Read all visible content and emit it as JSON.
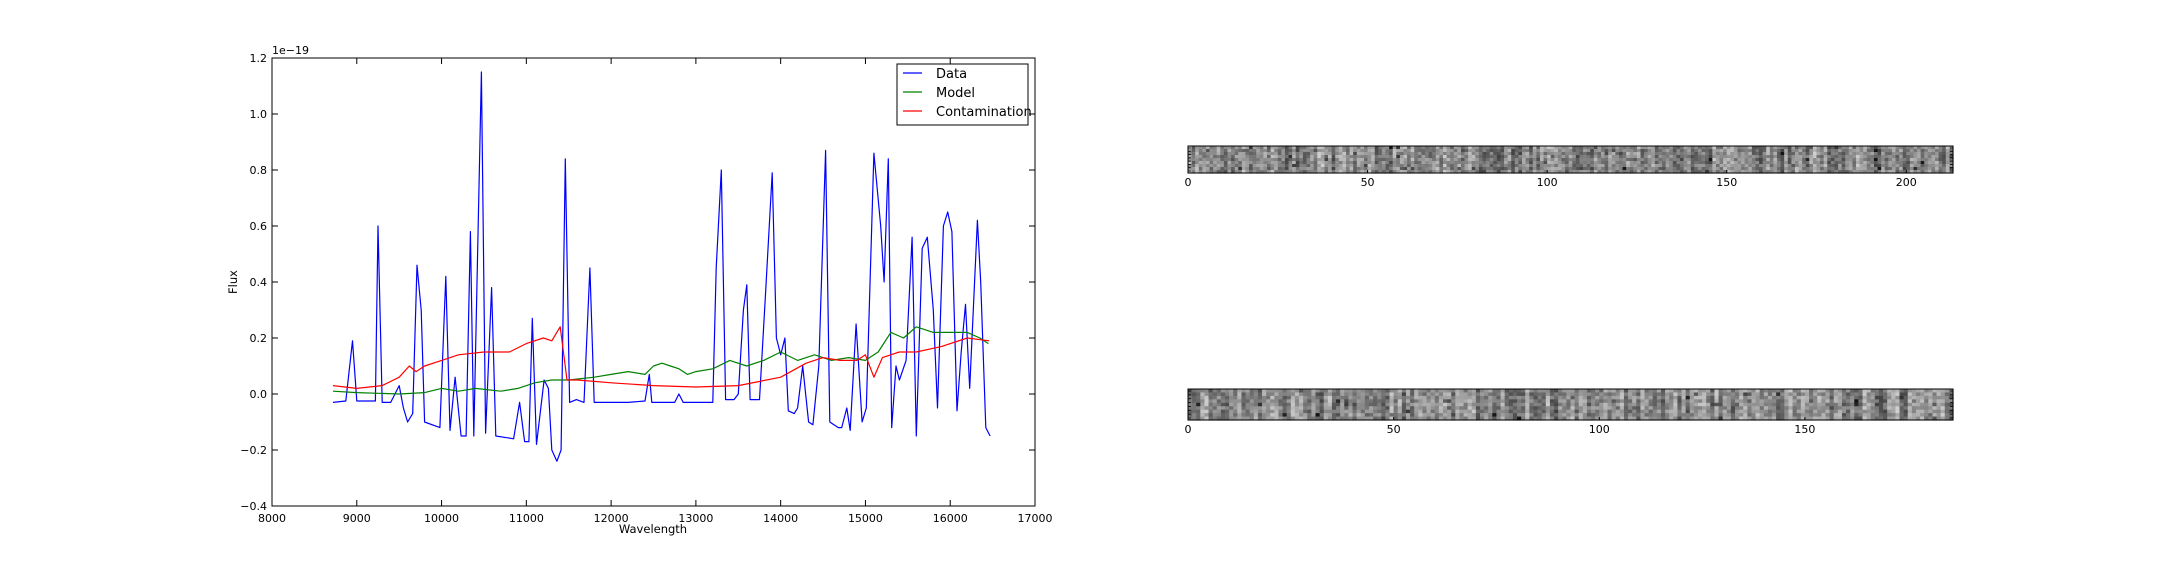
{
  "chart_data": [
    {
      "type": "line",
      "xlabel": "Wavelength",
      "ylabel": "Flux",
      "offset_label": "1e−19",
      "xlim": [
        8000,
        17000
      ],
      "ylim": [
        -0.4,
        1.2
      ],
      "xticks": [
        8000,
        9000,
        10000,
        11000,
        12000,
        13000,
        14000,
        15000,
        16000,
        17000
      ],
      "xtick_labels": [
        "8000",
        "9000",
        "10000",
        "11000",
        "12000",
        "13000",
        "14000",
        "15000",
        "16000",
        "17000"
      ],
      "yticks": [
        -0.4,
        -0.2,
        0.0,
        0.2,
        0.4,
        0.6,
        0.8,
        1.0,
        1.2
      ],
      "ytick_labels": [
        "−0.4",
        "−0.2",
        "0.0",
        "0.2",
        "0.4",
        "0.6",
        "0.8",
        "1.0",
        "1.2"
      ],
      "legend_position": "top-right",
      "grid": false,
      "series": [
        {
          "name": "Data",
          "color": "#0000ff",
          "points": [
            [
              8720,
              -0.03
            ],
            [
              8870,
              -0.025
            ],
            [
              8950,
              0.19
            ],
            [
              9000,
              -0.025
            ],
            [
              9220,
              -0.025
            ],
            [
              9250,
              0.6
            ],
            [
              9300,
              -0.03
            ],
            [
              9400,
              -0.03
            ],
            [
              9500,
              0.03
            ],
            [
              9550,
              -0.05
            ],
            [
              9600,
              -0.1
            ],
            [
              9660,
              -0.07
            ],
            [
              9710,
              0.46
            ],
            [
              9760,
              0.3
            ],
            [
              9800,
              -0.1
            ],
            [
              9980,
              -0.12
            ],
            [
              10050,
              0.42
            ],
            [
              10100,
              -0.13
            ],
            [
              10160,
              0.06
            ],
            [
              10230,
              -0.15
            ],
            [
              10290,
              -0.15
            ],
            [
              10340,
              0.58
            ],
            [
              10380,
              -0.15
            ],
            [
              10470,
              1.15
            ],
            [
              10520,
              -0.14
            ],
            [
              10590,
              0.38
            ],
            [
              10640,
              -0.15
            ],
            [
              10850,
              -0.16
            ],
            [
              10920,
              -0.03
            ],
            [
              10980,
              -0.17
            ],
            [
              11030,
              -0.17
            ],
            [
              11070,
              0.27
            ],
            [
              11120,
              -0.18
            ],
            [
              11210,
              0.05
            ],
            [
              11260,
              0.02
            ],
            [
              11300,
              -0.2
            ],
            [
              11360,
              -0.24
            ],
            [
              11410,
              -0.2
            ],
            [
              11460,
              0.84
            ],
            [
              11510,
              -0.03
            ],
            [
              11590,
              -0.02
            ],
            [
              11680,
              -0.03
            ],
            [
              11750,
              0.45
            ],
            [
              11800,
              -0.03
            ],
            [
              12000,
              -0.03
            ],
            [
              12200,
              -0.03
            ],
            [
              12400,
              -0.025
            ],
            [
              12450,
              0.07
            ],
            [
              12480,
              -0.03
            ],
            [
              12750,
              -0.03
            ],
            [
              12800,
              0.0
            ],
            [
              12850,
              -0.03
            ],
            [
              13000,
              -0.03
            ],
            [
              13200,
              -0.03
            ],
            [
              13240,
              0.45
            ],
            [
              13300,
              0.8
            ],
            [
              13350,
              -0.02
            ],
            [
              13450,
              -0.02
            ],
            [
              13500,
              0.0
            ],
            [
              13560,
              0.3
            ],
            [
              13600,
              0.39
            ],
            [
              13640,
              -0.02
            ],
            [
              13750,
              -0.02
            ],
            [
              13820,
              0.35
            ],
            [
              13900,
              0.79
            ],
            [
              13950,
              0.2
            ],
            [
              14000,
              0.14
            ],
            [
              14050,
              0.2
            ],
            [
              14090,
              -0.06
            ],
            [
              14160,
              -0.07
            ],
            [
              14200,
              -0.05
            ],
            [
              14260,
              0.1
            ],
            [
              14330,
              -0.1
            ],
            [
              14380,
              -0.11
            ],
            [
              14450,
              0.1
            ],
            [
              14530,
              0.87
            ],
            [
              14580,
              -0.1
            ],
            [
              14680,
              -0.12
            ],
            [
              14720,
              -0.12
            ],
            [
              14780,
              -0.05
            ],
            [
              14820,
              -0.13
            ],
            [
              14890,
              0.25
            ],
            [
              14960,
              -0.1
            ],
            [
              15010,
              -0.05
            ],
            [
              15100,
              0.86
            ],
            [
              15180,
              0.6
            ],
            [
              15220,
              0.4
            ],
            [
              15270,
              0.84
            ],
            [
              15310,
              -0.12
            ],
            [
              15360,
              0.1
            ],
            [
              15400,
              0.05
            ],
            [
              15480,
              0.12
            ],
            [
              15550,
              0.56
            ],
            [
              15600,
              -0.15
            ],
            [
              15670,
              0.52
            ],
            [
              15730,
              0.56
            ],
            [
              15800,
              0.3
            ],
            [
              15850,
              -0.05
            ],
            [
              15920,
              0.6
            ],
            [
              15970,
              0.65
            ],
            [
              16020,
              0.58
            ],
            [
              16080,
              -0.06
            ],
            [
              16130,
              0.15
            ],
            [
              16180,
              0.32
            ],
            [
              16230,
              0.02
            ],
            [
              16320,
              0.62
            ],
            [
              16360,
              0.4
            ],
            [
              16420,
              -0.12
            ],
            [
              16470,
              -0.15
            ]
          ]
        },
        {
          "name": "Model",
          "color": "#008000",
          "points": [
            [
              8720,
              0.01
            ],
            [
              9000,
              0.005
            ],
            [
              9500,
              0.0
            ],
            [
              9800,
              0.005
            ],
            [
              10000,
              0.02
            ],
            [
              10200,
              0.01
            ],
            [
              10400,
              0.02
            ],
            [
              10700,
              0.01
            ],
            [
              10900,
              0.02
            ],
            [
              11100,
              0.04
            ],
            [
              11300,
              0.05
            ],
            [
              11500,
              0.05
            ],
            [
              11800,
              0.06
            ],
            [
              12000,
              0.07
            ],
            [
              12200,
              0.08
            ],
            [
              12400,
              0.07
            ],
            [
              12500,
              0.1
            ],
            [
              12600,
              0.11
            ],
            [
              12700,
              0.1
            ],
            [
              12800,
              0.09
            ],
            [
              12900,
              0.07
            ],
            [
              13000,
              0.08
            ],
            [
              13200,
              0.09
            ],
            [
              13400,
              0.12
            ],
            [
              13600,
              0.1
            ],
            [
              13800,
              0.12
            ],
            [
              14000,
              0.15
            ],
            [
              14200,
              0.12
            ],
            [
              14400,
              0.14
            ],
            [
              14600,
              0.12
            ],
            [
              14800,
              0.13
            ],
            [
              15000,
              0.12
            ],
            [
              15150,
              0.15
            ],
            [
              15300,
              0.22
            ],
            [
              15450,
              0.2
            ],
            [
              15600,
              0.24
            ],
            [
              15800,
              0.22
            ],
            [
              16000,
              0.22
            ],
            [
              16200,
              0.22
            ],
            [
              16350,
              0.2
            ],
            [
              16450,
              0.18
            ]
          ]
        },
        {
          "name": "Contamination",
          "color": "#ff0000",
          "points": [
            [
              8720,
              0.03
            ],
            [
              9000,
              0.02
            ],
            [
              9300,
              0.03
            ],
            [
              9500,
              0.06
            ],
            [
              9620,
              0.1
            ],
            [
              9700,
              0.08
            ],
            [
              9800,
              0.1
            ],
            [
              10000,
              0.12
            ],
            [
              10200,
              0.14
            ],
            [
              10500,
              0.15
            ],
            [
              10800,
              0.15
            ],
            [
              11000,
              0.18
            ],
            [
              11200,
              0.2
            ],
            [
              11300,
              0.19
            ],
            [
              11400,
              0.24
            ],
            [
              11480,
              0.05
            ],
            [
              11600,
              0.05
            ],
            [
              12000,
              0.04
            ],
            [
              12500,
              0.03
            ],
            [
              13000,
              0.025
            ],
            [
              13500,
              0.03
            ],
            [
              14000,
              0.06
            ],
            [
              14300,
              0.11
            ],
            [
              14500,
              0.13
            ],
            [
              14700,
              0.12
            ],
            [
              14900,
              0.12
            ],
            [
              15000,
              0.14
            ],
            [
              15100,
              0.06
            ],
            [
              15200,
              0.13
            ],
            [
              15400,
              0.15
            ],
            [
              15600,
              0.15
            ],
            [
              15900,
              0.17
            ],
            [
              16200,
              0.2
            ],
            [
              16460,
              0.19
            ]
          ]
        }
      ]
    },
    {
      "type": "heatmap",
      "xlim": [
        0,
        213
      ],
      "xticks": [
        0,
        50,
        100,
        150,
        200
      ],
      "xtick_labels": [
        "0",
        "50",
        "100",
        "150",
        "200"
      ],
      "colormap": "gray"
    },
    {
      "type": "heatmap",
      "xlim": [
        0,
        186
      ],
      "xticks": [
        0,
        50,
        100,
        150
      ],
      "xtick_labels": [
        "0",
        "50",
        "100",
        "150"
      ],
      "colormap": "gray"
    }
  ]
}
